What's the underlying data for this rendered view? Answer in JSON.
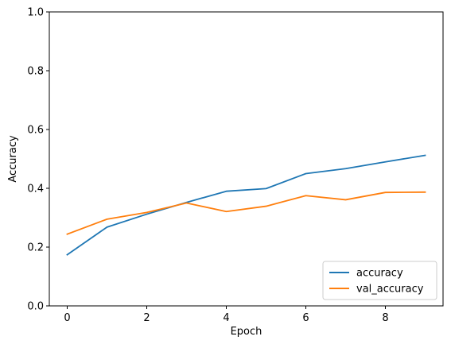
{
  "chart_data": {
    "type": "line",
    "title": "",
    "xlabel": "Epoch",
    "ylabel": "Accuracy",
    "xlim": [
      -0.45,
      9.45
    ],
    "ylim": [
      0,
      1
    ],
    "xticks": [
      0,
      2,
      4,
      6,
      8
    ],
    "yticks": [
      0.0,
      0.2,
      0.4,
      0.6,
      0.8,
      1.0
    ],
    "xtick_labels": [
      "0",
      "2",
      "4",
      "6",
      "8"
    ],
    "ytick_labels": [
      "0.0",
      "0.2",
      "0.4",
      "0.6",
      "0.8",
      "1.0"
    ],
    "grid": false,
    "legend_position": "lower-right",
    "x": [
      0,
      1,
      2,
      3,
      4,
      5,
      6,
      7,
      8,
      9
    ],
    "series": [
      {
        "name": "accuracy",
        "color": "#1f77b4",
        "values": [
          0.174,
          0.268,
          0.312,
          0.352,
          0.39,
          0.399,
          0.45,
          0.467,
          0.49,
          0.512
        ]
      },
      {
        "name": "val_accuracy",
        "color": "#ff7f0e",
        "values": [
          0.244,
          0.295,
          0.318,
          0.35,
          0.321,
          0.339,
          0.375,
          0.361,
          0.386,
          0.387
        ]
      }
    ]
  }
}
